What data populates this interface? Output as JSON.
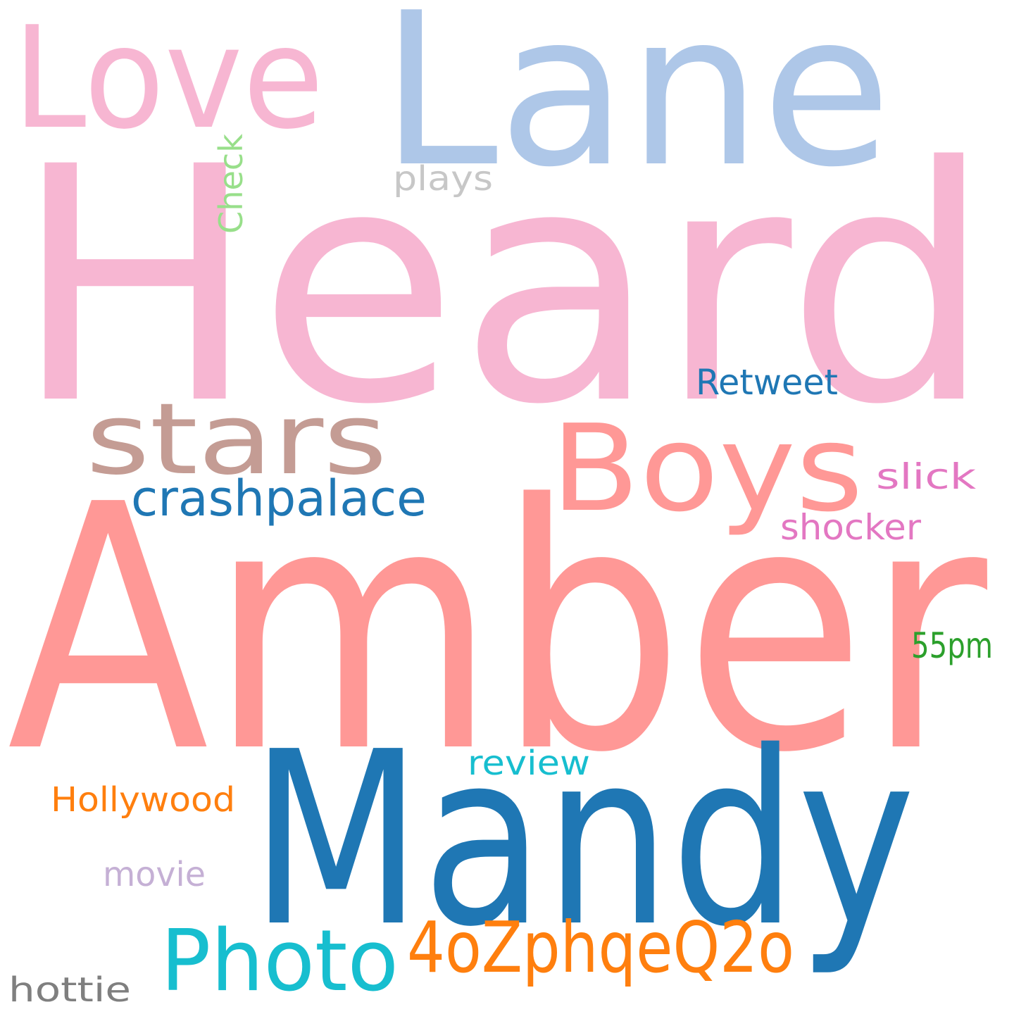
{
  "words": [
    {
      "key": "heard",
      "text": "Heard",
      "color": "#f7b6d2"
    },
    {
      "key": "lane",
      "text": "Lane",
      "color": "#aec7e8"
    },
    {
      "key": "love",
      "text": "Love",
      "color": "#f7b6d2"
    },
    {
      "key": "amber",
      "text": "Amber",
      "color": "#ff9896"
    },
    {
      "key": "mandy",
      "text": "Mandy",
      "color": "#1f77b4"
    },
    {
      "key": "boys",
      "text": "Boys",
      "color": "#ff9896"
    },
    {
      "key": "stars",
      "text": "stars",
      "color": "#c49c94"
    },
    {
      "key": "crashpalace",
      "text": "crashpalace",
      "color": "#1f77b4"
    },
    {
      "key": "photo",
      "text": "Photo",
      "color": "#17becf"
    },
    {
      "key": "code",
      "text": "4oZphqeQ2o",
      "color": "#ff7f0e"
    },
    {
      "key": "retweet",
      "text": "Retweet",
      "color": "#1f77b4"
    },
    {
      "key": "slick",
      "text": "slick",
      "color": "#e377c2"
    },
    {
      "key": "shocker",
      "text": "shocker",
      "color": "#e377c2"
    },
    {
      "key": "pm",
      "text": "55pm",
      "color": "#2ca02c"
    },
    {
      "key": "review",
      "text": "review",
      "color": "#17becf"
    },
    {
      "key": "hollywood",
      "text": "Hollywood",
      "color": "#ff7f0e"
    },
    {
      "key": "movie",
      "text": "movie",
      "color": "#c5b0d5"
    },
    {
      "key": "hottie",
      "text": "hottie",
      "color": "#7f7f7f"
    },
    {
      "key": "plays",
      "text": "plays",
      "color": "#c7c7c7"
    },
    {
      "key": "check",
      "text": "Check",
      "color": "#98df8a"
    }
  ]
}
